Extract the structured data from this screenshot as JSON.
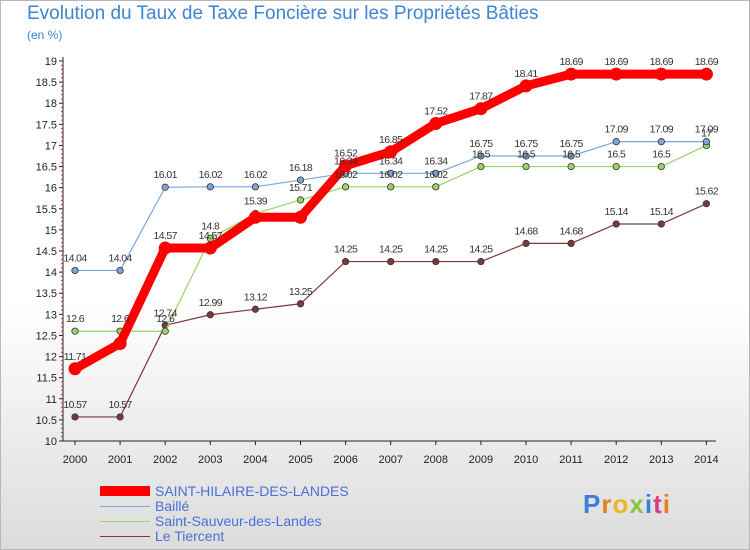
{
  "chart_data": {
    "type": "line",
    "title": "Evolution du Taux de Taxe Foncière sur les Propriétés Bâties",
    "ylabel": "(en %)",
    "xlabel": "",
    "ylim": [
      10,
      19
    ],
    "yticks": [
      "10",
      "10.5",
      "11",
      "11.5",
      "12",
      "12.5",
      "13",
      "13.5",
      "14",
      "14.5",
      "15",
      "15.5",
      "16",
      "16.5",
      "17",
      "17.5",
      "18",
      "18.5",
      "19"
    ],
    "categories": [
      "2000",
      "2001",
      "2002",
      "2003",
      "2004",
      "2005",
      "2006",
      "2007",
      "2008",
      "2009",
      "2010",
      "2011",
      "2012",
      "2013",
      "2014"
    ],
    "series": [
      {
        "name": "SAINT-HILAIRE-DES-LANDES",
        "color": "#ff0000",
        "values": [
          11.71,
          12.31,
          14.57,
          14.57,
          15.3,
          15.3,
          16.52,
          16.85,
          17.52,
          17.87,
          18.41,
          18.69,
          18.69,
          18.69,
          18.69
        ],
        "labels": [
          "11.71",
          "",
          "14.57",
          "14.57",
          "",
          "",
          "16.52",
          "16.85",
          "17.52",
          "17.87",
          "18.41",
          "18.69",
          "18.69",
          "18.69",
          "18.69"
        ]
      },
      {
        "name": "Baillé",
        "color": "#7aa6d8",
        "values": [
          14.04,
          14.04,
          16.01,
          16.02,
          16.02,
          16.18,
          16.34,
          16.34,
          16.34,
          16.75,
          16.75,
          16.75,
          17.09,
          17.09,
          17.09
        ],
        "labels": [
          "14.04",
          "14.04",
          "16.01",
          "16.02",
          "16.02",
          "16.18",
          "16.34",
          "16.34",
          "16.34",
          "16.75",
          "16.75",
          "16.75",
          "17.09",
          "17.09",
          "17.09"
        ]
      },
      {
        "name": "Saint-Sauveur-des-Landes",
        "color": "#9ad466",
        "values": [
          12.6,
          12.6,
          12.6,
          14.8,
          15.39,
          15.71,
          16.02,
          16.02,
          16.02,
          16.5,
          16.5,
          16.5,
          16.5,
          16.5,
          17.0
        ],
        "labels": [
          "12.6",
          "12.6",
          "12.6",
          "14.8",
          "15.39",
          "15.71",
          "16.02",
          "16.02",
          "16.02",
          "16.5",
          "16.5",
          "16.5",
          "16.5",
          "16.5",
          "17"
        ]
      },
      {
        "name": "Le Tiercent",
        "color": "#7a3a3a",
        "values": [
          10.57,
          10.57,
          12.74,
          12.99,
          13.12,
          13.25,
          14.25,
          14.25,
          14.25,
          14.25,
          14.68,
          14.68,
          15.14,
          15.14,
          15.62
        ],
        "labels": [
          "10.57",
          "10.57",
          "12.74",
          "12.99",
          "13.12",
          "13.25",
          "14.25",
          "14.25",
          "14.25",
          "14.25",
          "14.68",
          "14.68",
          "15.14",
          "15.14",
          "15.62"
        ]
      }
    ],
    "legend_position": "bottom-left",
    "grid": false
  },
  "logo": {
    "letters": [
      "P",
      "r",
      "o",
      "x",
      "i",
      "t",
      "i"
    ],
    "colors": [
      "#3b7fd8",
      "#e87d1e",
      "#e8b81e",
      "#8bc43e",
      "#3b7fd8",
      "#d83b8b",
      "#e87d1e"
    ]
  }
}
